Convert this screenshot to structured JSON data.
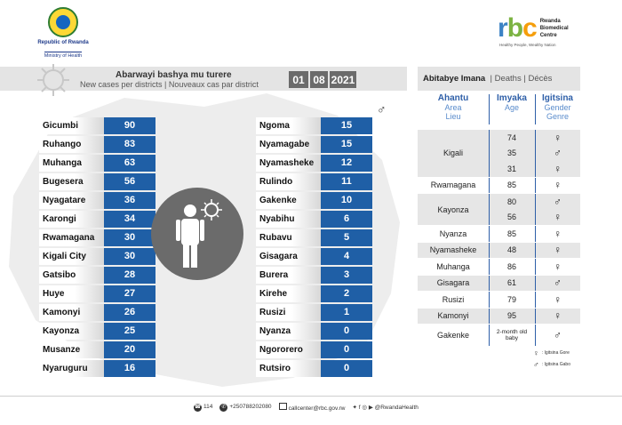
{
  "header": {
    "republic": "Republic of Rwanda",
    "ministry": "Ministry of Health",
    "rbc_letters": [
      "r",
      "b",
      "c"
    ],
    "rbc_name": [
      "Rwanda",
      "Biomedical",
      "Centre"
    ],
    "rbc_tagline": "Healthy People, Wealthy Nation"
  },
  "title": {
    "main": "Abarwayi bashya mu turere",
    "sub": "New cases per districts  |  Nouveaux cas par district",
    "date": [
      "01",
      "08",
      "2021"
    ]
  },
  "cases_left": [
    {
      "district": "Gicumbi",
      "value": "90"
    },
    {
      "district": "Ruhango",
      "value": "83"
    },
    {
      "district": "Muhanga",
      "value": "63"
    },
    {
      "district": "Bugesera",
      "value": "56"
    },
    {
      "district": "Nyagatare",
      "value": "36"
    },
    {
      "district": "Karongi",
      "value": "34"
    },
    {
      "district": "Rwamagana",
      "value": "30"
    },
    {
      "district": "Kigali City",
      "value": "30"
    },
    {
      "district": "Gatsibo",
      "value": "28"
    },
    {
      "district": "Huye",
      "value": "27"
    },
    {
      "district": "Kamonyi",
      "value": "26"
    },
    {
      "district": "Kayonza",
      "value": "25"
    },
    {
      "district": "Musanze",
      "value": "20"
    },
    {
      "district": "Nyaruguru",
      "value": "16"
    }
  ],
  "cases_right": [
    {
      "district": "Ngoma",
      "value": "15"
    },
    {
      "district": "Nyamagabe",
      "value": "15"
    },
    {
      "district": "Nyamasheke",
      "value": "12"
    },
    {
      "district": "Rulindo",
      "value": "11"
    },
    {
      "district": "Gakenke",
      "value": "10"
    },
    {
      "district": "Nyabihu",
      "value": "6"
    },
    {
      "district": "Rubavu",
      "value": "5"
    },
    {
      "district": "Gisagara",
      "value": "4"
    },
    {
      "district": "Burera",
      "value": "3"
    },
    {
      "district": "Kirehe",
      "value": "2"
    },
    {
      "district": "Rusizi",
      "value": "1"
    },
    {
      "district": "Nyanza",
      "value": "0"
    },
    {
      "district": "Ngororero",
      "value": "0"
    },
    {
      "district": "Rutsiro",
      "value": "0"
    }
  ],
  "deaths": {
    "header_bold": "Abitabye Imana",
    "header_rest": "|  Deaths  |  Décès",
    "columns": [
      {
        "h1": "Ahantu",
        "h2": "Area",
        "h3": "Lieu"
      },
      {
        "h1": "Imyaka",
        "h2": "Age",
        "h3": ""
      },
      {
        "h1": "Igitsina",
        "h2": "Gender",
        "h3": "Genre"
      }
    ],
    "groups": [
      {
        "area": "Kigali",
        "entries": [
          {
            "age": "74",
            "gender": "female"
          },
          {
            "age": "35",
            "gender": "male"
          },
          {
            "age": "31",
            "gender": "female"
          }
        ]
      },
      {
        "area": "Rwamagana",
        "entries": [
          {
            "age": "85",
            "gender": "female"
          }
        ]
      },
      {
        "area": "Kayonza",
        "entries": [
          {
            "age": "80",
            "gender": "male"
          },
          {
            "age": "56",
            "gender": "female"
          }
        ]
      },
      {
        "area": "Nyanza",
        "entries": [
          {
            "age": "85",
            "gender": "female"
          }
        ]
      },
      {
        "area": "Nyamasheke",
        "entries": [
          {
            "age": "48",
            "gender": "female"
          }
        ]
      },
      {
        "area": "Muhanga",
        "entries": [
          {
            "age": "86",
            "gender": "female"
          }
        ]
      },
      {
        "area": "Gisagara",
        "entries": [
          {
            "age": "61",
            "gender": "male"
          }
        ]
      },
      {
        "area": "Rusizi",
        "entries": [
          {
            "age": "79",
            "gender": "female"
          }
        ]
      },
      {
        "area": "Kamonyi",
        "entries": [
          {
            "age": "95",
            "gender": "female"
          }
        ]
      },
      {
        "area": "Gakenke",
        "entries": [
          {
            "age": "2-month old baby",
            "gender": "male"
          }
        ]
      }
    ],
    "legend": [
      {
        "gender": "female",
        "label": ": Igitsina Gore"
      },
      {
        "gender": "male",
        "label": ": Igitsina Gabo"
      }
    ]
  },
  "footer": {
    "hotline": "114",
    "phone": "+250788202080",
    "email": "callcenter@rbc.gov.rw",
    "social": "@RwandaHealth"
  },
  "colors": {
    "accent_blue": "#1f5fa6",
    "gray": "#6b6b6b",
    "header_blue": "#2e5fa8"
  }
}
